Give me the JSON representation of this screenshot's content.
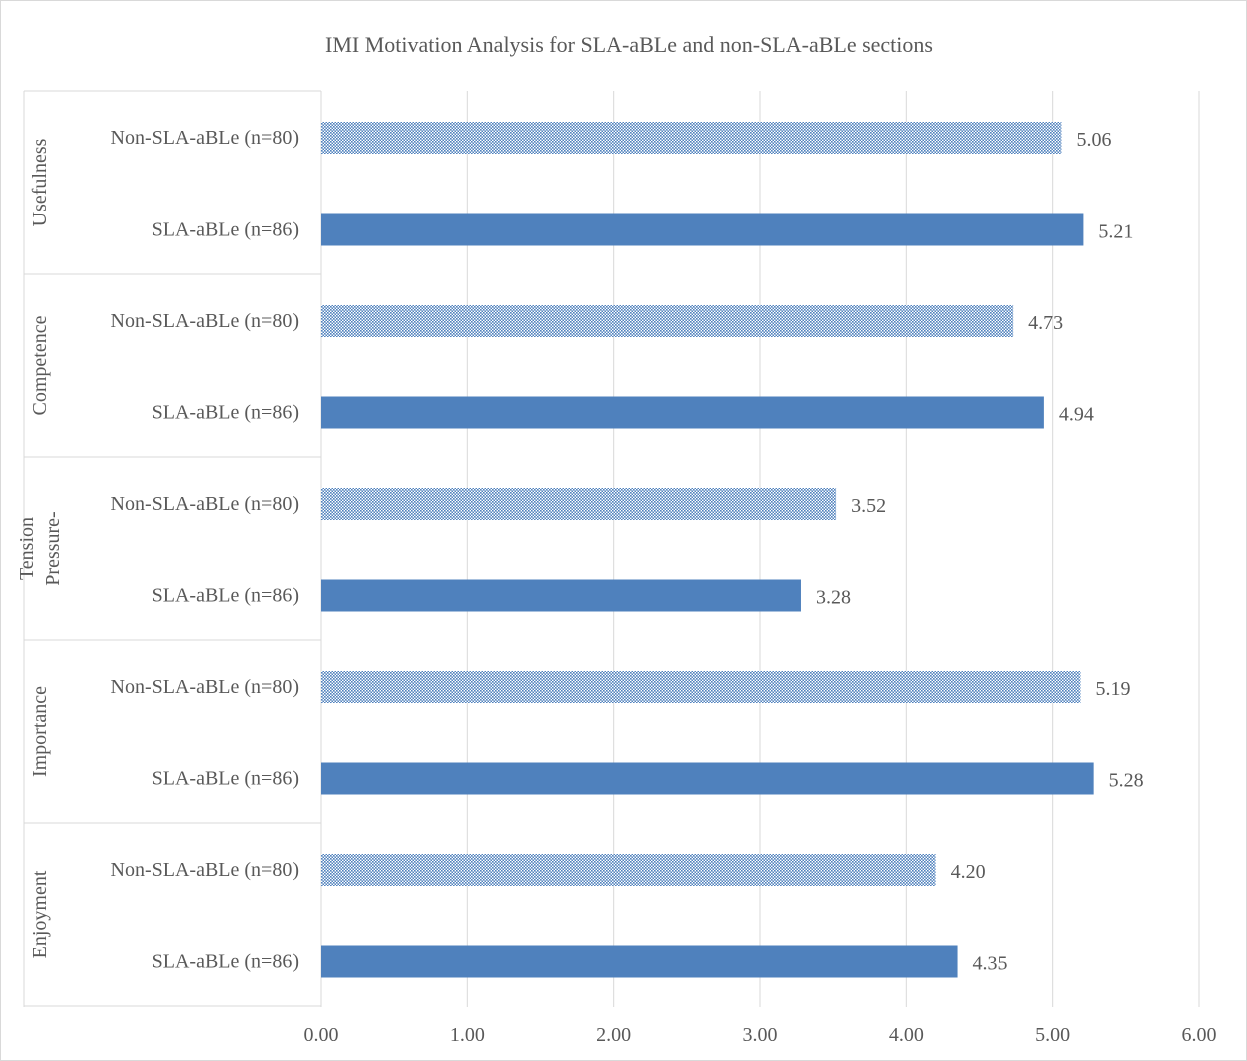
{
  "chart_data": {
    "type": "bar",
    "orientation": "horizontal",
    "title": "IMI Motivation Analysis for SLA-aBLe and non-SLA-aBLe sections",
    "xlabel": "",
    "ylabel": "",
    "xlim": [
      0,
      6
    ],
    "x_ticks": [
      "0.00",
      "1.00",
      "2.00",
      "3.00",
      "4.00",
      "5.00",
      "6.00"
    ],
    "grid": true,
    "legend": "none",
    "colors": {
      "sla": "#4f81bd",
      "non_sla_pattern": "#4f81bd",
      "gridline": "#d9d9d9",
      "text": "#595959"
    },
    "groups": [
      {
        "label_lines": [
          "Usefulness"
        ],
        "bars": [
          {
            "label": "Non-SLA-aBLe (n=80)",
            "value": 5.06,
            "value_label": "5.06",
            "style": "pattern"
          },
          {
            "label": "SLA-aBLe (n=86)",
            "value": 5.21,
            "value_label": "5.21",
            "style": "solid"
          }
        ]
      },
      {
        "label_lines": [
          "Competence"
        ],
        "bars": [
          {
            "label": "Non-SLA-aBLe (n=80)",
            "value": 4.73,
            "value_label": "4.73",
            "style": "pattern"
          },
          {
            "label": "SLA-aBLe (n=86)",
            "value": 4.94,
            "value_label": "4.94",
            "style": "solid"
          }
        ]
      },
      {
        "label_lines": [
          "Tension",
          "Pressure-"
        ],
        "bars": [
          {
            "label": "Non-SLA-aBLe (n=80)",
            "value": 3.52,
            "value_label": "3.52",
            "style": "pattern"
          },
          {
            "label": "SLA-aBLe (n=86)",
            "value": 3.28,
            "value_label": "3.28",
            "style": "solid"
          }
        ]
      },
      {
        "label_lines": [
          "Importance"
        ],
        "bars": [
          {
            "label": "Non-SLA-aBLe (n=80)",
            "value": 5.19,
            "value_label": "5.19",
            "style": "pattern"
          },
          {
            "label": "SLA-aBLe (n=86)",
            "value": 5.28,
            "value_label": "5.28",
            "style": "solid"
          }
        ]
      },
      {
        "label_lines": [
          "Enjoyment"
        ],
        "bars": [
          {
            "label": "Non-SLA-aBLe (n=80)",
            "value": 4.2,
            "value_label": "4.20",
            "style": "pattern"
          },
          {
            "label": "SLA-aBLe (n=86)",
            "value": 4.35,
            "value_label": "4.35",
            "style": "solid"
          }
        ]
      }
    ]
  }
}
